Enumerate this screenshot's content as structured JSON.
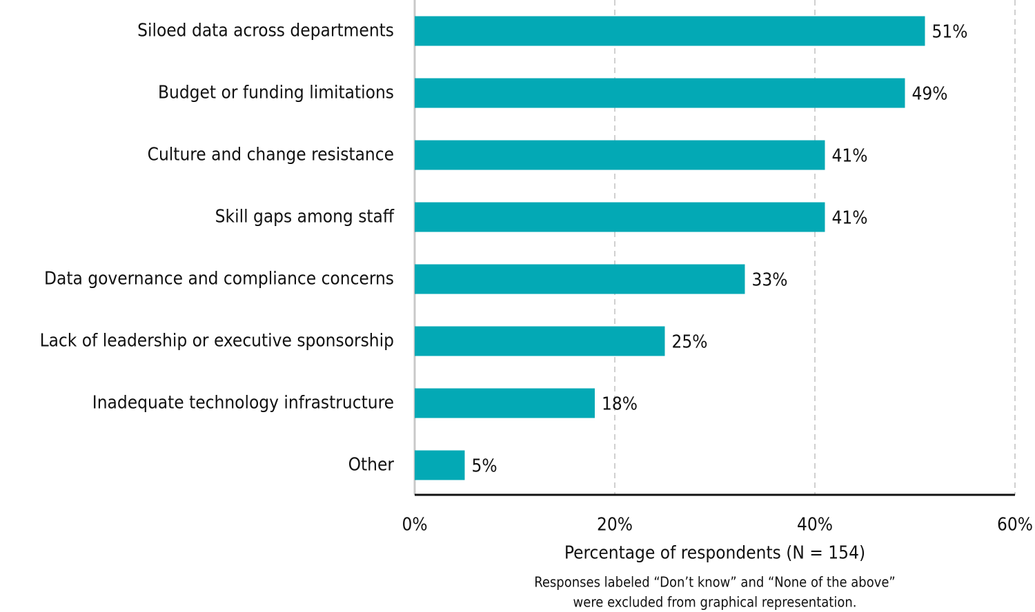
{
  "chart_data": {
    "type": "barh",
    "categories": [
      "Siloed data across departments",
      "Budget or funding limitations",
      "Culture and change resistance",
      "Skill gaps among staff",
      "Data governance and compliance concerns",
      "Lack of leadership or executive sponsorship",
      "Inadequate technology infrastructure",
      "Other"
    ],
    "values": [
      51,
      49,
      41,
      41,
      33,
      25,
      18,
      5
    ],
    "value_labels": [
      "51%",
      "49%",
      "41%",
      "41%",
      "33%",
      "25%",
      "18%",
      "5%"
    ],
    "color": "#03a9b5",
    "xlim": [
      0,
      60
    ],
    "xticks": [
      {
        "value": 0,
        "label": "0%"
      },
      {
        "value": 20,
        "label": "20%"
      },
      {
        "value": 40,
        "label": "40%"
      },
      {
        "value": 60,
        "label": "60%"
      }
    ],
    "grid": true,
    "xlabel": "Percentage of respondents (N = 154)",
    "note": [
      "Responses labeled “Don’t know” and “None of the above”",
      "were excluded from graphical representation."
    ]
  }
}
